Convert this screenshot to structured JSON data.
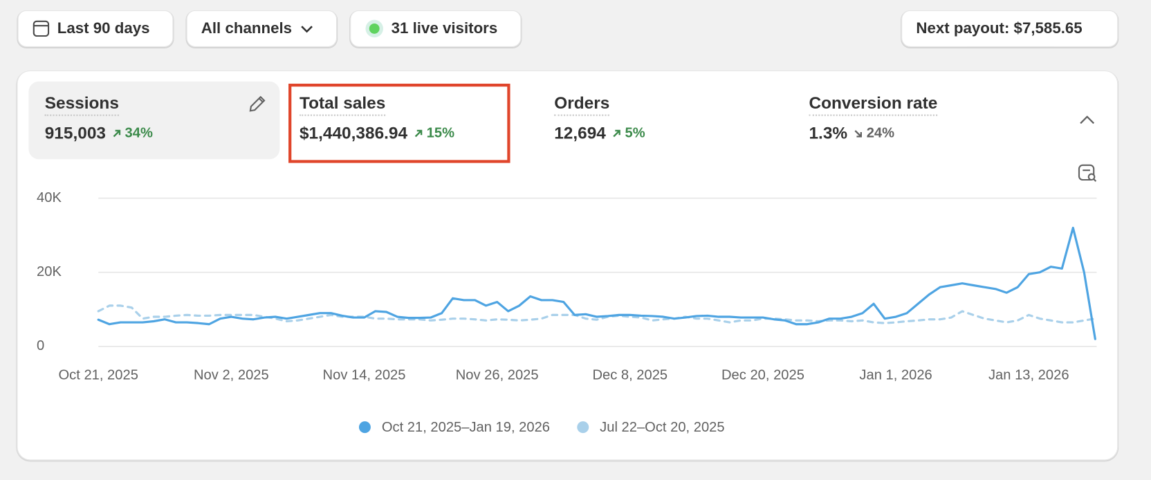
{
  "toolbar": {
    "date_range": "Last 90 days",
    "channels": "All channels",
    "live_visitors": "31 live visitors",
    "payout": "Next payout: $7,585.65"
  },
  "metrics": [
    {
      "label": "Sessions",
      "value": "915,003",
      "change": "34%"
    },
    {
      "label": "Total sales",
      "value": "$1,440,386.94",
      "change": "15%"
    },
    {
      "label": "Orders",
      "value": "12,694",
      "change": "5%"
    },
    {
      "label": "Conversion rate",
      "value": "1.3%",
      "change": "24%"
    }
  ],
  "chart_data": {
    "type": "line",
    "categories": [
      "Oct 21, 2025",
      null,
      null,
      null,
      null,
      null,
      null,
      null,
      null,
      null,
      null,
      null,
      "Nov 2, 2025",
      null,
      null,
      null,
      null,
      null,
      null,
      null,
      null,
      null,
      null,
      null,
      "Nov 14, 2025",
      null,
      null,
      null,
      null,
      null,
      null,
      null,
      null,
      null,
      null,
      null,
      "Nov 26, 2025",
      null,
      null,
      null,
      null,
      null,
      null,
      null,
      null,
      null,
      null,
      null,
      "Dec 8, 2025",
      null,
      null,
      null,
      null,
      null,
      null,
      null,
      null,
      null,
      null,
      null,
      "Dec 20, 2025",
      null,
      null,
      null,
      null,
      null,
      null,
      null,
      null,
      null,
      null,
      null,
      "Jan 1, 2026",
      null,
      null,
      null,
      null,
      null,
      null,
      null,
      null,
      null,
      null,
      null,
      "Jan 13, 2026",
      null,
      null,
      null,
      null,
      null,
      null
    ],
    "series": [
      {
        "name": "Oct 21, 2025–Jan 19, 2026",
        "color": "#4ea4e2",
        "dashed": false,
        "values": [
          7200,
          6000,
          6500,
          6500,
          6500,
          6800,
          7300,
          6500,
          6500,
          6300,
          6000,
          7500,
          8000,
          7500,
          7300,
          7800,
          8000,
          7500,
          8000,
          8500,
          9000,
          9000,
          8300,
          7800,
          7800,
          9500,
          9300,
          8000,
          7700,
          7700,
          7800,
          9000,
          13000,
          12500,
          12500,
          11000,
          12000,
          9500,
          11000,
          13500,
          12500,
          12500,
          12000,
          8500,
          8700,
          8000,
          8200,
          8500,
          8500,
          8300,
          8200,
          8000,
          7500,
          7800,
          8200,
          8300,
          8000,
          8000,
          7800,
          7800,
          7800,
          7300,
          7000,
          6000,
          6000,
          6500,
          7500,
          7500,
          8000,
          9000,
          11500,
          7500,
          8000,
          9000,
          11500,
          14000,
          16000,
          16500,
          17000,
          16500,
          16000,
          15500,
          14500,
          16000,
          19500,
          20000,
          21500,
          21000,
          32000,
          20000,
          2000
        ]
      },
      {
        "name": "Jul 22–Oct 20, 2025",
        "color": "#a9d0ea",
        "dashed": true,
        "values": [
          9500,
          11000,
          11000,
          10500,
          7500,
          8000,
          8000,
          8300,
          8500,
          8300,
          8300,
          8500,
          8500,
          8500,
          8500,
          8000,
          7500,
          6800,
          7000,
          7500,
          8000,
          8500,
          8000,
          8000,
          8000,
          7500,
          7500,
          7300,
          7300,
          7300,
          7000,
          7200,
          7500,
          7500,
          7300,
          7000,
          7300,
          7200,
          7000,
          7200,
          7500,
          8500,
          8500,
          8500,
          7500,
          7200,
          8000,
          8300,
          8000,
          7800,
          7000,
          7300,
          7500,
          8000,
          7500,
          7500,
          7000,
          6500,
          7000,
          7000,
          7500,
          7500,
          7300,
          7000,
          7000,
          6800,
          7000,
          7000,
          6800,
          7000,
          6500,
          6300,
          6500,
          6800,
          7000,
          7300,
          7300,
          7800,
          9500,
          8500,
          7500,
          7000,
          6500,
          7000,
          8500,
          7500,
          7000,
          6500,
          6500,
          7000,
          7500
        ]
      }
    ],
    "ylim": [
      0,
      40000
    ],
    "yticks": [
      0,
      {
        "value": 20000,
        "label": "20K"
      },
      {
        "value": 40000,
        "label": "40K"
      }
    ],
    "grid": true
  }
}
